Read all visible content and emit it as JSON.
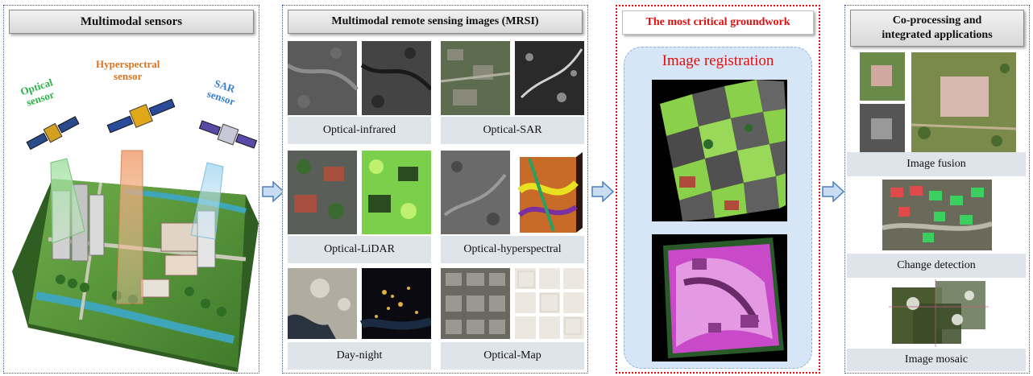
{
  "colors": {
    "panel_border": "#3a5a8a",
    "critical_red": "#e01010",
    "label_bg": "#dfe3ea",
    "arrow_fill": "#c8dcf2",
    "arrow_stroke": "#4a7fc1",
    "optical_green": "#2bb34a",
    "hyperspectral_orange": "#d9731f",
    "sar_blue": "#3a7fc8"
  },
  "panel1": {
    "title": "Multimodal sensors",
    "sensors": {
      "optical": [
        "Optical",
        "sensor"
      ],
      "hyperspectral": [
        "Hyperspectral",
        "sensor"
      ],
      "sar": [
        "SAR",
        "sensor"
      ]
    },
    "icons": [
      "satellite-icon",
      "satellite-icon",
      "satellite-icon",
      "city-scene-icon"
    ]
  },
  "panel2": {
    "title": "Multimodal remote sensing images (MRSI)",
    "pairs": [
      {
        "label": "Optical-infrared"
      },
      {
        "label": "Optical-SAR"
      },
      {
        "label": "Optical-LiDAR"
      },
      {
        "label": "Optical-hyperspectral"
      },
      {
        "label": "Day-night"
      },
      {
        "label": "Optical-Map"
      }
    ]
  },
  "panel3": {
    "title": "The most critical groundwork",
    "subtitle": "Image registration"
  },
  "panel4": {
    "title": [
      "Co-processing and",
      "integrated applications"
    ],
    "apps": [
      {
        "label": "Image fusion"
      },
      {
        "label": "Change detection"
      },
      {
        "label": "Image mosaic"
      }
    ]
  }
}
